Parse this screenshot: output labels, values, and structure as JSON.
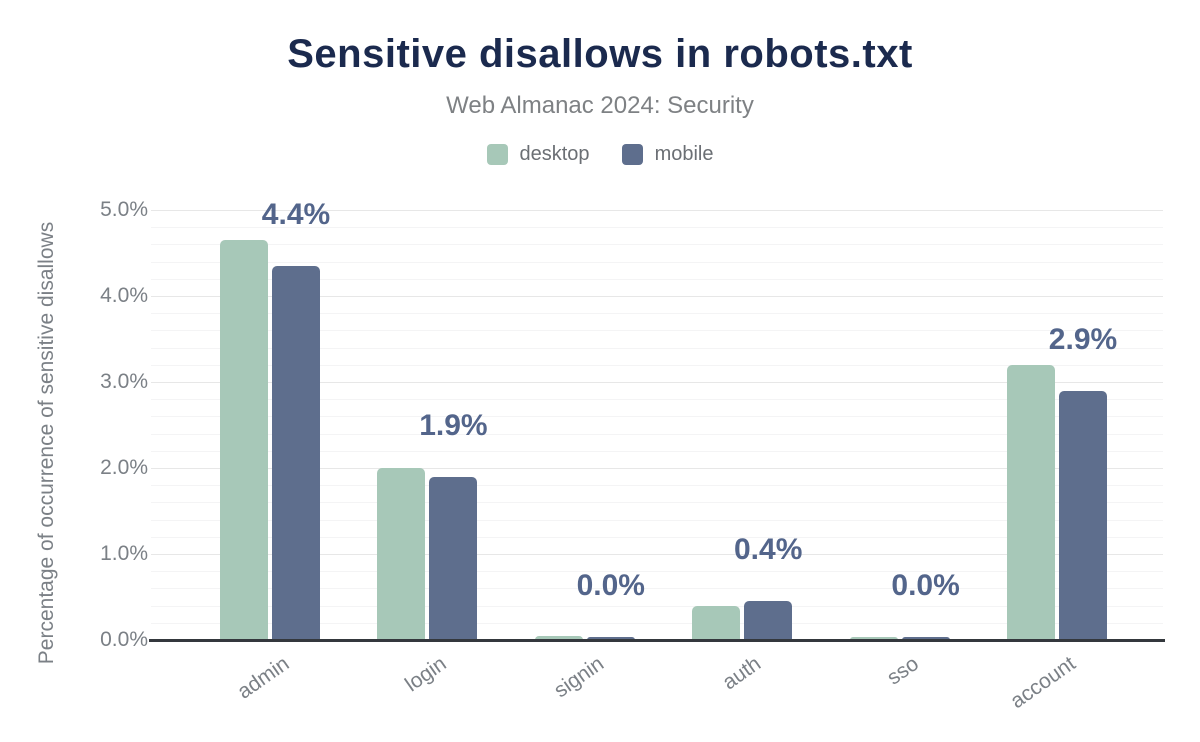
{
  "chart_data": {
    "type": "bar",
    "title": "Sensitive disallows in robots.txt",
    "subtitle": "Web Almanac 2024: Security",
    "categories": [
      "admin",
      "login",
      "signin",
      "auth",
      "sso",
      "account"
    ],
    "series": [
      {
        "name": "desktop",
        "color": "#a7c8b8",
        "values": [
          4.65,
          2.0,
          0.05,
          0.4,
          0.03,
          3.2
        ]
      },
      {
        "name": "mobile",
        "color": "#5e6e8d",
        "values": [
          4.35,
          1.9,
          0.03,
          0.45,
          0.03,
          2.9
        ]
      }
    ],
    "bar_labels": [
      "4.4%",
      "1.9%",
      "0.0%",
      "0.4%",
      "0.0%",
      "2.9%"
    ],
    "bar_labels_series": "mobile",
    "xlabel": "",
    "ylabel": "Percentage of occurrence of sensitive disallows",
    "ylim": [
      0,
      5
    ],
    "yticks": [
      "0.0%",
      "1.0%",
      "2.0%",
      "3.0%",
      "4.0%",
      "5.0%"
    ],
    "grid": {
      "major_step": 1.0,
      "minor_step": 0.2,
      "visible": true
    },
    "legend_position": "top"
  },
  "colors": {
    "background": "#ffffff",
    "title": "#1b2a4e",
    "subtitle": "#7e8184",
    "axis_text": "#7b8086",
    "data_label": "#53658b",
    "baseline": "#34383d",
    "grid_major": "#e7e7e7",
    "grid_minor": "#f4f4f5",
    "desktop": "#a7c8b8",
    "mobile": "#5e6e8d"
  }
}
